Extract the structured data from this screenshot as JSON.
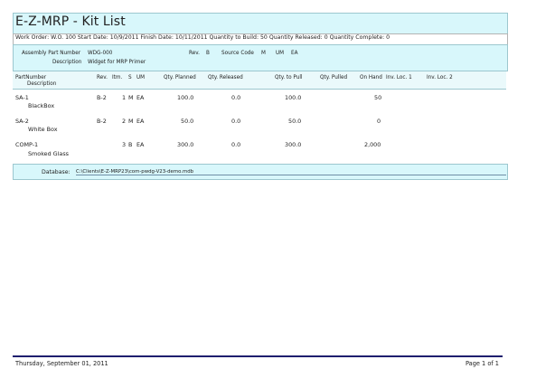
{
  "report": {
    "title": "E-Z-MRP - Kit List",
    "work_order_line": "Work Order: W.O. 100   Start Date: 10/9/2011   Finish Date: 10/11/2011   Quantity to Build: 50   Quantity Released: 0   Quantity Complete: 0"
  },
  "assembly": {
    "part_number_label": "Assembly Part Number",
    "part_number": "WDG-000",
    "description_label": "Description",
    "description": "Widget for MRP Primer",
    "rev_label": "Rev.",
    "rev": "B",
    "source_code_label": "Source Code",
    "source_code": "M",
    "um_label": "UM",
    "um": "EA"
  },
  "columns": {
    "part_number": "PartNumber",
    "description": "Description",
    "rev": "Rev.",
    "itm": "Itm.",
    "s": "S",
    "um": "UM",
    "qty_planned": "Qty. Planned",
    "qty_released": "Qty. Released",
    "qty_to_pull": "Qty. to Pull",
    "qty_pulled": "Qty. Pulled",
    "on_hand": "On Hand",
    "inv_loc1": "Inv. Loc. 1",
    "inv_loc2": "Inv. Loc. 2"
  },
  "rows": [
    {
      "part": "SA-1",
      "desc": "BlackBox",
      "rev": "B-2",
      "itm": "1",
      "s": "M",
      "um": "EA",
      "planned": "100.0",
      "released": "0.0",
      "to_pull": "100.0",
      "on_hand": "50"
    },
    {
      "part": "SA-2",
      "desc": "White Box",
      "rev": "B-2",
      "itm": "2",
      "s": "M",
      "um": "EA",
      "planned": "50.0",
      "released": "0.0",
      "to_pull": "50.0",
      "on_hand": "0"
    },
    {
      "part": "COMP-1",
      "desc": "Smoked Glass",
      "rev": "",
      "itm": "3",
      "s": "B",
      "um": "EA",
      "planned": "300.0",
      "released": "0.0",
      "to_pull": "300.0",
      "on_hand": "2,000"
    }
  ],
  "database": {
    "label": "Database:",
    "path": "C:\\Clients\\E-Z-MRP23\\com-pwdg-V23-demo.mdb"
  },
  "footer": {
    "date": "Thursday, September 01, 2011",
    "page": "Page 1 of 1"
  }
}
